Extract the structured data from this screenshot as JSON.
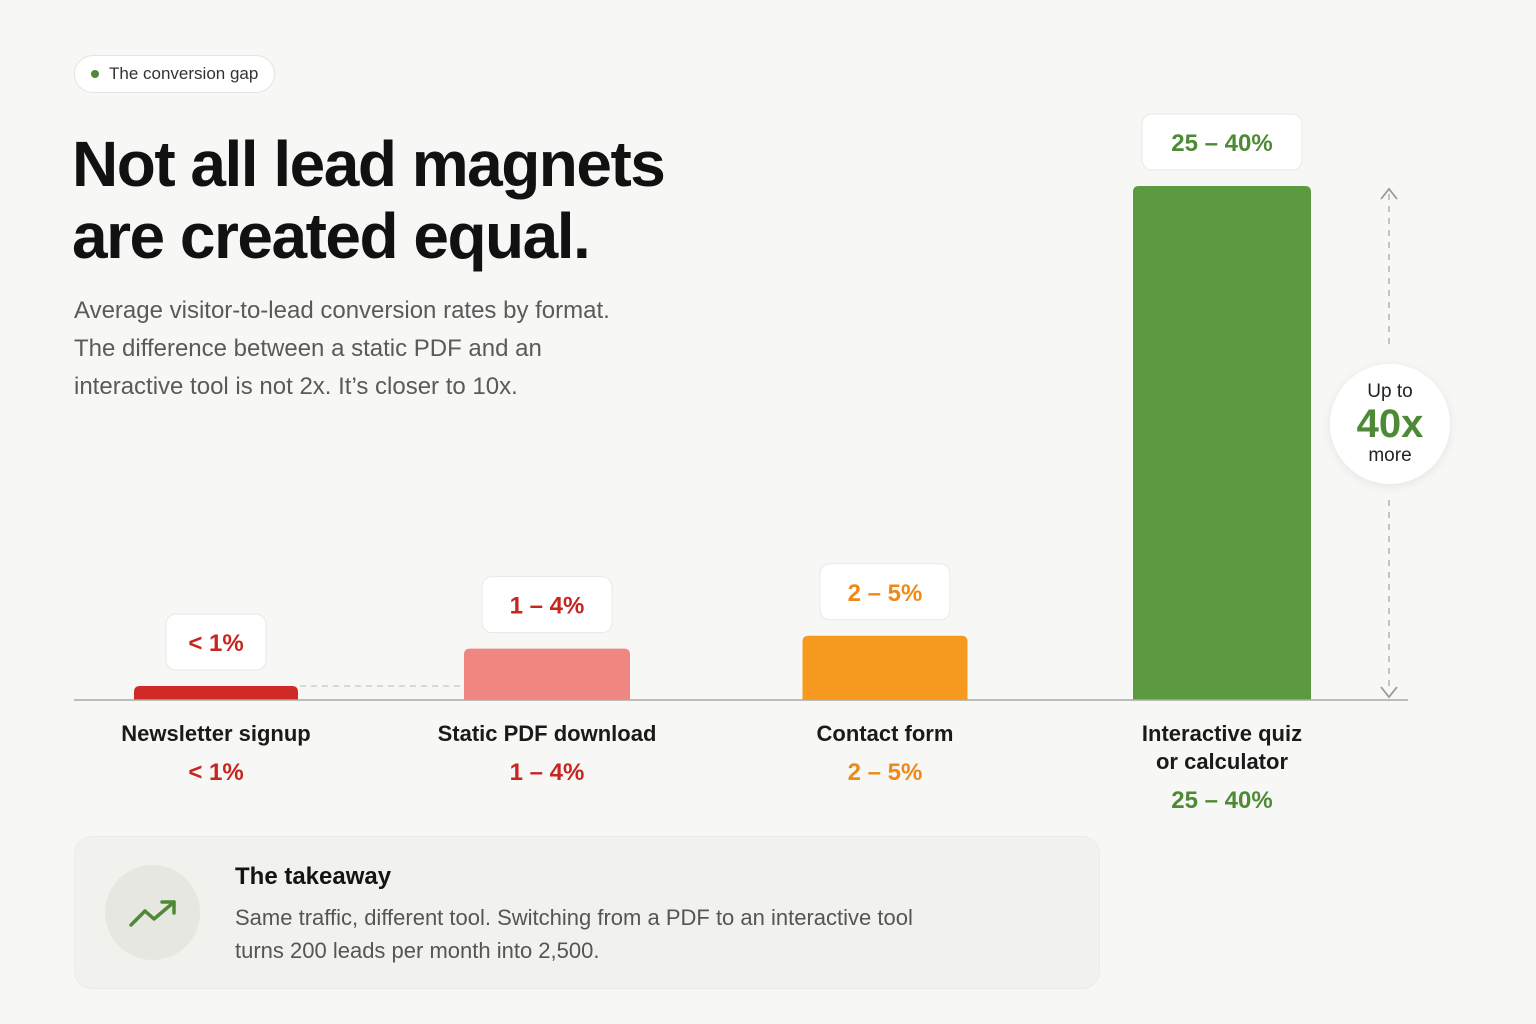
{
  "badge": {
    "label": "The conversion gap",
    "dot_color": "#4e8a36"
  },
  "title": [
    "Not all lead magnets",
    "are created equal."
  ],
  "subtitle": [
    "Average visitor-to-lead conversion rates by format.",
    "The difference between a static PDF and an",
    "interactive tool is not 2x. It’s closer to 10x."
  ],
  "chart_data": {
    "type": "bar",
    "subtype": "range",
    "unit": "%",
    "ylim": [
      0,
      40
    ],
    "grid": false,
    "categories": [
      {
        "name_lines": [
          "Newsletter signup"
        ],
        "low": 0,
        "high": 1,
        "label": "< 1%",
        "color": "#cf2a26",
        "text_color": "#c62520"
      },
      {
        "name_lines": [
          "Static PDF download"
        ],
        "low": 1,
        "high": 4,
        "label": "1 – 4%",
        "color": "#ef8682",
        "text_color": "#c62520"
      },
      {
        "name_lines": [
          "Contact form"
        ],
        "low": 2,
        "high": 5,
        "label": "2 – 5%",
        "color": "#f59a1f",
        "text_color": "#ee8a17"
      },
      {
        "name_lines": [
          "Interactive quiz",
          "or calculator"
        ],
        "low": 25,
        "high": 40,
        "label": "25 – 40%",
        "color": "#5b9a3e",
        "text_color": "#4e8a36"
      }
    ]
  },
  "ratio": {
    "prefix": "Up to",
    "value": "40x",
    "suffix": "more"
  },
  "takeaway": {
    "icon": "trending-up-icon",
    "title": "The takeaway",
    "body": [
      "Same traffic, different tool. Switching from a PDF to an interactive tool",
      "turns 200 leads per month into 2,500."
    ]
  }
}
